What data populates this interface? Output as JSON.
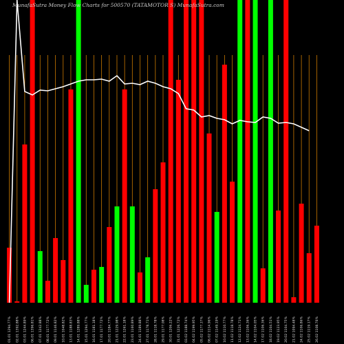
{
  "chart_data": {
    "type": "bar",
    "title": "MunafaSutra  Money Flow  Charts for 500570          (TATAMOTOR          S) MunafaSutra.com",
    "categories": [
      "01.01 1294.77%",
      "02.01 1392.88%",
      "03.01 1244.89%",
      "06.01 1396.81%",
      "07.01 1242.88%",
      "08.01 1177.72%",
      "09.01 1146.82%",
      "10.01 1048.82%",
      "13.01 1188.83%",
      "14.01 1289.88%",
      "15.01 1294.77%",
      "16.01 1181.18%",
      "17.01 1177.72%",
      "20.01 1184.77%",
      "21.01 1229.98%",
      "22.01 1261.18%",
      "23.01 1160.89%",
      "24.01 1189.88%",
      "27.01 1178.71%",
      "28.01 1118.78%",
      "29.01 1177.08%",
      "30.01 1206.22%",
      "31.01 1226.72%",
      "03.02 1188.74%",
      "04.02 1199.95%",
      "05.02 1177.37%",
      "06.02 1114.96%",
      "07.02 1149.19%",
      "10.02 1110.77%",
      "11.02 1118.78%",
      "12.02 1124.71%",
      "13.02 1106.36%",
      "14.02 1104.05%",
      "17.02 1106.36%",
      "18.02 1104.51%",
      "19.02 1123.95%",
      "20.02 1104.75%",
      "21.02 1094.48%",
      "24.02 1106.86%",
      "25.02 1119.17%",
      "26.02 1108.76%"
    ],
    "series": [
      {
        "name": "flow",
        "values": [
          80,
          2,
          230,
          440,
          75,
          32,
          94,
          62,
          310,
          440,
          26,
          48,
          52,
          110,
          140,
          310,
          140,
          44,
          66,
          165,
          204,
          440,
          324,
          440,
          440,
          440,
          246,
          132,
          346,
          176,
          440,
          440,
          440,
          50,
          440,
          134,
          440,
          8,
          144,
          72,
          112
        ],
        "colors": [
          "#ff0000",
          "#ff0000",
          "#ff0000",
          "#ff0000",
          "#00ff00",
          "#ff0000",
          "#ff0000",
          "#ff0000",
          "#ff0000",
          "#00ff00",
          "#00ff00",
          "#ff0000",
          "#00ff00",
          "#ff0000",
          "#00ff00",
          "#ff0000",
          "#00ff00",
          "#ff0000",
          "#00ff00",
          "#ff0000",
          "#ff0000",
          "#ff0000",
          "#ff0000",
          "#ff0000",
          "#ff0000",
          "#ff0000",
          "#ff0000",
          "#00ff00",
          "#ff0000",
          "#ff0000",
          "#00ff00",
          "#ff0000",
          "#00ff00",
          "#ff0000",
          "#00ff00",
          "#ff0000",
          "#ff0000",
          "#ff0000",
          "#ff0000",
          "#ff0000",
          "#ff0000"
        ]
      },
      {
        "name": "price",
        "type": "line",
        "color": "#ffffff",
        "values": [
          0,
          440,
          307,
          302,
          309,
          308,
          311,
          314,
          318,
          322,
          324,
          324,
          325,
          322,
          330,
          318,
          319,
          317,
          322,
          319,
          314,
          311,
          304,
          282,
          280,
          270,
          272,
          268,
          266,
          260,
          265,
          263,
          262,
          270,
          268,
          261,
          262,
          260,
          255,
          250,
          null
        ]
      }
    ],
    "ylim": [
      0,
      440
    ],
    "grid_color": "#cc7a00"
  }
}
